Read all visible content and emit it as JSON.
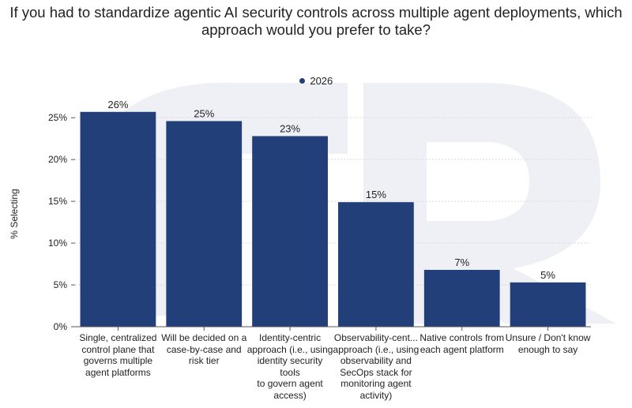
{
  "title_line1": "If you had to standardize agentic AI security controls across multiple agent deployments, which",
  "title_line2": "approach would you prefer to take?",
  "colors": {
    "bar": "#233f7a",
    "grid": "#d9d9d9",
    "axis": "#555555",
    "text": "#222222",
    "watermark": "#eef0f6"
  },
  "chart_data": {
    "type": "bar",
    "title": "If you had to standardize agentic AI security controls across multiple agent deployments, which approach would you prefer to take?",
    "ylabel": "% Selecting",
    "xlabel": "",
    "ylim": [
      0,
      27
    ],
    "yticks": [
      0,
      5,
      10,
      15,
      20,
      25
    ],
    "ytick_labels": [
      "0%",
      "5%",
      "10%",
      "15%",
      "20%",
      "25%"
    ],
    "grid": true,
    "legend_position": "top-center",
    "categories": [
      "Single, centralized control plane that governs multiple agent platforms",
      "Will be decided on a case-by-case and risk tier",
      "Identity-centric approach (i.e., using identity security tools to govern agent access)",
      "Observability-cent... approach (i.e., using observability and SecOps stack for monitoring agent activity)",
      "Native controls from each agent platform",
      "Unsure / Don't know enough to say"
    ],
    "category_lines": [
      [
        "Single, centralized",
        "control plane that",
        "governs multiple",
        "agent platforms"
      ],
      [
        "Will be decided on a",
        "case-by-case and",
        "risk tier"
      ],
      [
        "Identity-centric",
        "approach (i.e., using",
        "identity security tools",
        "to govern agent",
        "access)"
      ],
      [
        "Observability-cent...",
        "approach (i.e., using",
        "observability and",
        "SecOps stack for",
        "monitoring agent",
        "activity)"
      ],
      [
        "Native controls from",
        "each agent platform"
      ],
      [
        "Unsure / Don't know",
        "enough to say"
      ]
    ],
    "series": [
      {
        "name": "2026",
        "values": [
          25.7,
          24.6,
          22.8,
          14.9,
          6.8,
          5.3
        ],
        "data_labels": [
          "26%",
          "25%",
          "23%",
          "15%",
          "7%",
          "5%"
        ]
      }
    ]
  }
}
